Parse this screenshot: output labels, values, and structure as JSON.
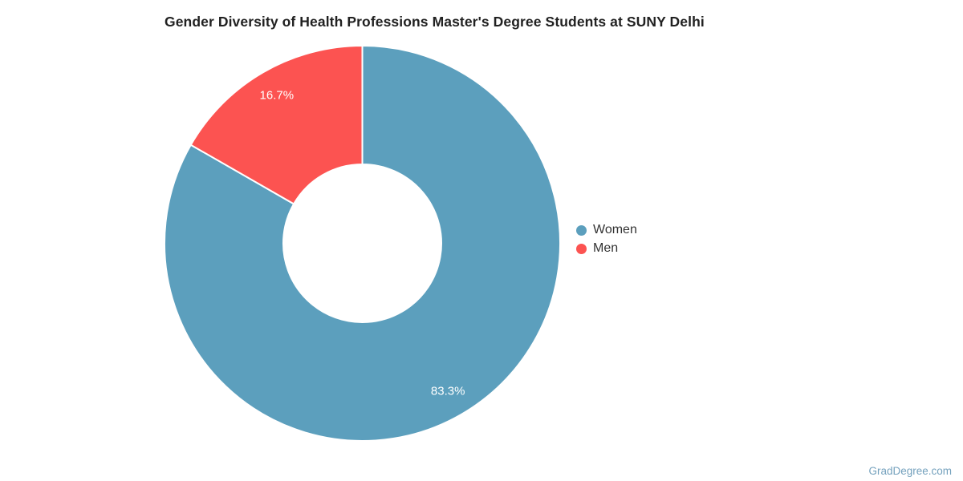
{
  "chart_data": {
    "type": "pie",
    "subtype": "donut",
    "title": "Gender Diversity of Health Professions Master's Degree Students at SUNY Delhi",
    "inner_radius_pct": 40,
    "start_angle_deg": 0,
    "direction": "clockwise",
    "legend_position": "right",
    "slices": [
      {
        "label": "Women",
        "value": 83.3,
        "display": "83.3%",
        "color": "#5C9FBD"
      },
      {
        "label": "Men",
        "value": 16.7,
        "display": "16.7%",
        "color": "#FC5351"
      }
    ]
  },
  "legend": {
    "items": [
      {
        "label": "Women"
      },
      {
        "label": "Men"
      }
    ]
  },
  "watermark": "GradDegree.com",
  "colors": {
    "background": "#ffffff",
    "title_text": "#212121",
    "legend_text": "#333333",
    "data_label_text": "#ffffff",
    "slice_border": "#ffffff",
    "watermark_text": "#74A1BD"
  }
}
